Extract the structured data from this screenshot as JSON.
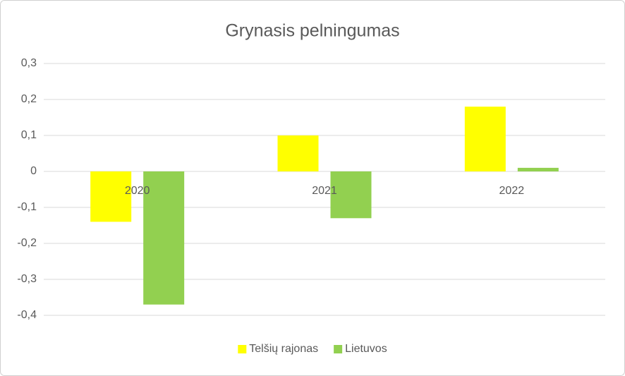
{
  "chart_data": {
    "type": "bar",
    "title": "Grynasis pelningumas",
    "categories": [
      "2020",
      "2021",
      "2022"
    ],
    "series": [
      {
        "name": "Telšių rajonas",
        "color": "#ffff00",
        "values": [
          -0.14,
          0.1,
          0.18
        ]
      },
      {
        "name": "Lietuvos",
        "color": "#92d050",
        "values": [
          -0.37,
          -0.13,
          0.01
        ]
      }
    ],
    "ylim": [
      -0.4,
      0.3
    ],
    "yticks": [
      {
        "value": 0.3,
        "label": "0,3"
      },
      {
        "value": 0.2,
        "label": "0,2"
      },
      {
        "value": 0.1,
        "label": "0,1"
      },
      0,
      {
        "value": -0.1,
        "label": "-0,1"
      },
      {
        "value": -0.2,
        "label": "-0,2"
      },
      {
        "value": -0.3,
        "label": "-0,3"
      },
      {
        "value": -0.4,
        "label": "-0,4"
      }
    ],
    "grid": true,
    "legend": "bottom"
  }
}
